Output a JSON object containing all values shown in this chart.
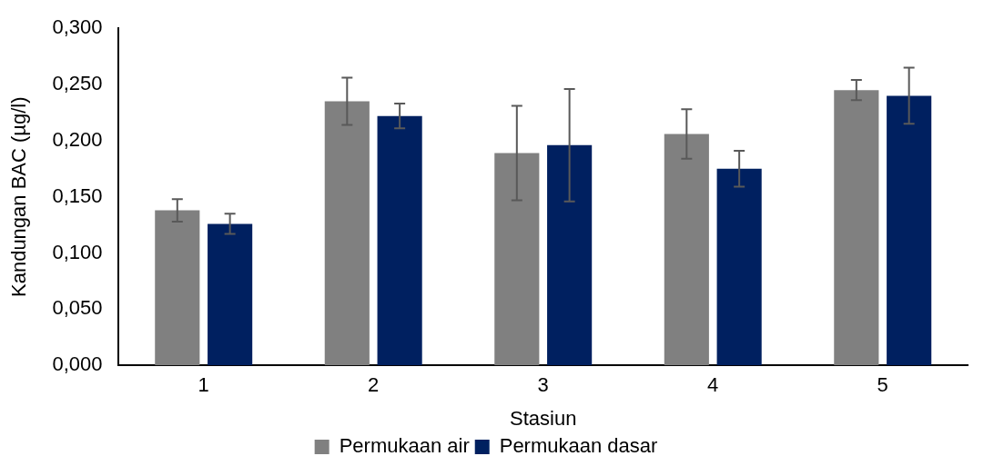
{
  "chart_data": {
    "type": "bar",
    "xlabel": "Stasiun",
    "ylabel": "Kandungan BAC (µg/l)",
    "categories": [
      "1",
      "2",
      "3",
      "4",
      "5"
    ],
    "series": [
      {
        "name": "Permukaan air",
        "color": "#808080",
        "values": [
          0.138,
          0.235,
          0.189,
          0.206,
          0.245
        ],
        "errors": [
          0.01,
          0.021,
          0.042,
          0.022,
          0.009
        ]
      },
      {
        "name": "Permukaan dasar",
        "color": "#002060",
        "values": [
          0.126,
          0.222,
          0.196,
          0.175,
          0.24
        ],
        "errors": [
          0.009,
          0.011,
          0.05,
          0.016,
          0.025
        ]
      }
    ],
    "ylim": [
      0,
      0.3
    ],
    "yticks": [
      {
        "value": 0,
        "label": "0,000"
      },
      {
        "value": 0.05,
        "label": "0,050"
      },
      {
        "value": 0.1,
        "label": "0,100"
      },
      {
        "value": 0.15,
        "label": "0,150"
      },
      {
        "value": 0.2,
        "label": "0,200"
      },
      {
        "value": 0.25,
        "label": "0,250"
      },
      {
        "value": 0.3,
        "label": "0,300"
      }
    ],
    "grid": false,
    "legend": "bottom"
  }
}
